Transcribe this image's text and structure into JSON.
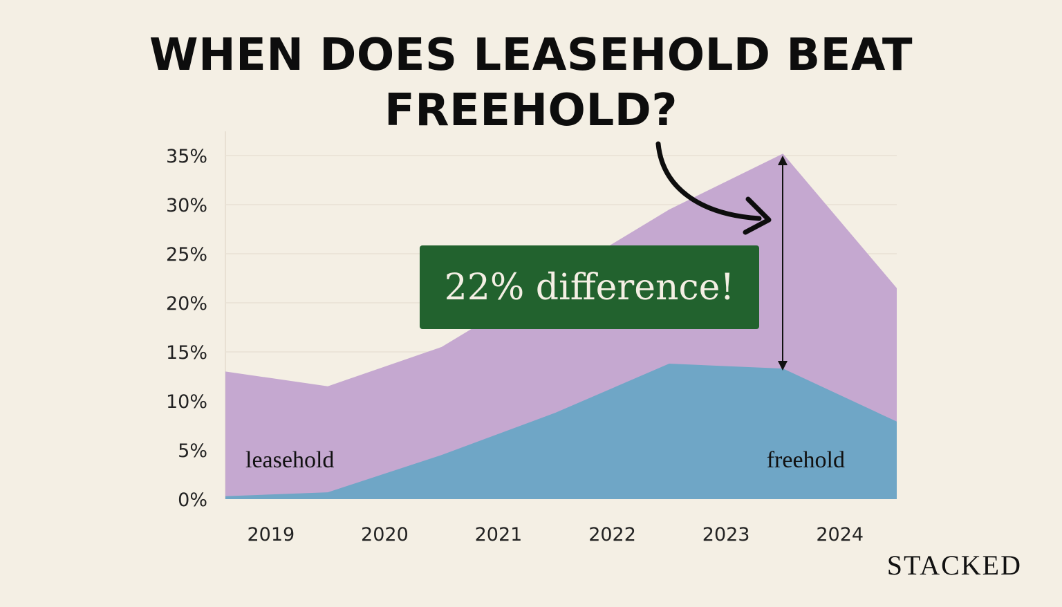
{
  "title": {
    "line1": "WHEN DOES LEASEHOLD BEAT",
    "line2": "FREEHOLD?"
  },
  "annotation": "22% difference!",
  "brand": "STACKED",
  "colors": {
    "background": "#f4efe4",
    "leasehold": "#c5a8d0",
    "freehold": "#6fa6c6",
    "badge": "#22622e",
    "grid": "#e8e1d4"
  },
  "chart_data": {
    "type": "area",
    "title": "WHEN DOES LEASEHOLD BEAT FREEHOLD?",
    "xlabel": "",
    "ylabel": "",
    "ylim": [
      0,
      35
    ],
    "y_ticks": [
      "0%",
      "5%",
      "10%",
      "15%",
      "20%",
      "25%",
      "30%",
      "35%"
    ],
    "x_ticks": [
      "2019",
      "2020",
      "2021",
      "2022",
      "2023",
      "2024"
    ],
    "grid": true,
    "series": [
      {
        "name": "leasehold",
        "x": [
          2018.6,
          2019.5,
          2020.5,
          2021.5,
          2022.5,
          2023.5,
          2024.5
        ],
        "values": [
          13,
          11.5,
          15.5,
          22.5,
          29.5,
          35.2,
          21.5
        ]
      },
      {
        "name": "freehold",
        "x": [
          2018.6,
          2019.5,
          2020.5,
          2021.5,
          2022.5,
          2023.5,
          2024.5
        ],
        "values": [
          0.3,
          0.7,
          4.5,
          8.8,
          13.8,
          13.3,
          7.9
        ]
      }
    ]
  }
}
